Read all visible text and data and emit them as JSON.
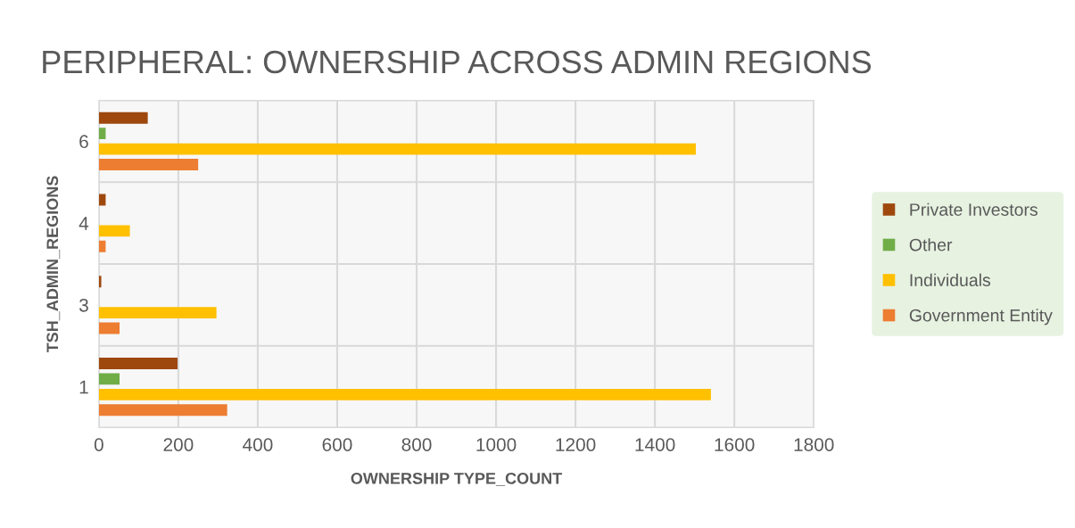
{
  "chart_data": {
    "type": "bar",
    "orientation": "horizontal",
    "title": "PERIPHERAL: OWNERSHIP ACROSS ADMIN REGIONS",
    "xlabel": "OWNERSHIP TYPE_COUNT",
    "ylabel": "TSH_ADMIN_REGIONS",
    "categories": [
      "6",
      "4",
      "3",
      "1"
    ],
    "series": [
      {
        "name": "Private Investors",
        "color": "#9e480e",
        "values": [
          123,
          17,
          6,
          198
        ]
      },
      {
        "name": "Other",
        "color": "#70ad47",
        "values": [
          17,
          null,
          null,
          52
        ]
      },
      {
        "name": "Individuals",
        "color": "#ffc000",
        "values": [
          1503,
          78,
          296,
          1541
        ]
      },
      {
        "name": "Government Entity",
        "color": "#ed7d31",
        "values": [
          250,
          17,
          52,
          323
        ]
      }
    ],
    "xlim": [
      0,
      1800
    ],
    "xticks": [
      0,
      200,
      400,
      600,
      800,
      1000,
      1200,
      1400,
      1600,
      1800
    ],
    "grid": true,
    "legend": "right"
  }
}
